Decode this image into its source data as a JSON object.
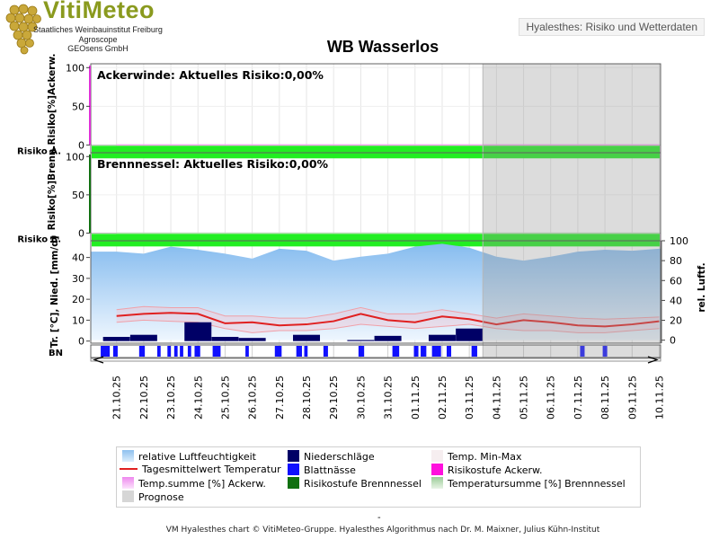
{
  "header": {
    "logo_title": "VitiMeteo",
    "logo_lines": [
      "Staatliches Weinbauinstitut Freiburg",
      "Agroscope",
      "GEOsens GmbH"
    ],
    "subtitle": "Hyalesthes: Risiko und Wetterdaten"
  },
  "chart_data": {
    "type": "line",
    "title": "WB Wasserlos",
    "dates": [
      "21.10.25",
      "22.10.25",
      "23.10.25",
      "24.10.25",
      "25.10.25",
      "26.10.25",
      "27.10.25",
      "28.10.25",
      "29.10.25",
      "30.10.25",
      "31.10.25",
      "01.11.25",
      "02.11.25",
      "03.11.25",
      "04.11.25",
      "05.11.25",
      "06.11.25",
      "07.11.25",
      "08.11.25",
      "09.11.25",
      "10.11.25"
    ],
    "forecast_from": "04.11.25",
    "panels": [
      {
        "name": "Ackerwinde",
        "annotation": "Ackerwinde: Aktuelles Risiko:0,00%",
        "ylabel": "Risiko[%]Ackerw.",
        "row_label": "Risiko A.",
        "ylim": [
          -10,
          105
        ],
        "yticks": [
          0,
          50,
          100
        ],
        "risk_series": "Temp.summe [%] Ackerw.",
        "risk_values": [
          0,
          0,
          0,
          0,
          0,
          0,
          0,
          0,
          0,
          0,
          0,
          0,
          0,
          0,
          0,
          0,
          0,
          0,
          0,
          0,
          0
        ],
        "risk_level_band": "Risikostufe Ackerw.",
        "risk_level_band_color": "#22ee22"
      },
      {
        "name": "Brennnessel",
        "annotation": "Brennnessel: Aktuelles Risiko:0,00%",
        "ylabel": "Risiko[%]Brenn.",
        "row_label": "Risiko B.",
        "ylim": [
          -10,
          105
        ],
        "yticks": [
          0,
          50,
          100
        ],
        "risk_series": "Temperatursumme [%] Brennnessel",
        "risk_values": [
          0,
          0,
          0,
          0,
          0,
          0,
          0,
          0,
          0,
          0,
          0,
          0,
          0,
          0,
          0,
          0,
          0,
          0,
          0,
          0,
          0
        ],
        "risk_level_band": "Risikostufe Brennnessel",
        "risk_level_band_color": "#22ee22"
      }
    ],
    "weather": {
      "ylabel_left": "Tr. [°C], Nied. [mm/d]",
      "ylabel_right": "rel. Luftf.",
      "ylim_left": [
        -1,
        48
      ],
      "yticks_left": [
        0,
        10,
        20,
        30,
        40
      ],
      "ylim_right": [
        -3,
        100
      ],
      "yticks_right": [
        0,
        20,
        40,
        60,
        80,
        100
      ],
      "row_label": "BN",
      "series": [
        {
          "name": "relative Luftfeuchtigkeit",
          "axis": "right",
          "values": [
            89,
            87,
            94,
            91,
            87,
            82,
            92,
            90,
            80,
            84,
            87,
            94,
            97,
            93,
            84,
            80,
            84,
            89,
            91,
            90,
            92
          ]
        },
        {
          "name": "Niederschläge",
          "axis": "left",
          "values": [
            2,
            3,
            0,
            9,
            2,
            1.5,
            0,
            3,
            0,
            0.5,
            2.5,
            0,
            3,
            6,
            0,
            0,
            0,
            0,
            0,
            0,
            0
          ]
        },
        {
          "name": "Tagesmittelwert Temperatur",
          "axis": "left",
          "values": [
            12,
            13,
            13.5,
            13,
            8.5,
            9,
            7.5,
            8,
            9.5,
            13,
            10,
            9,
            11.8,
            10.5,
            8,
            10,
            9,
            7.5,
            7,
            8,
            9.5
          ]
        },
        {
          "name": "Temp. Min-Max",
          "axis": "left",
          "min": [
            9,
            10,
            9.5,
            9,
            6,
            4,
            5,
            5,
            6,
            8,
            7,
            6,
            7,
            8,
            6,
            5,
            5,
            4,
            4,
            5,
            6
          ],
          "max": [
            15,
            16.5,
            16,
            16,
            12,
            12,
            11,
            11,
            13,
            16,
            13,
            13,
            15,
            13,
            11,
            13,
            12,
            11,
            10.5,
            11,
            11.5
          ]
        }
      ],
      "leaf_wetness_hours": [
        [
          "20.10.25 22",
          "21.10.25 06"
        ],
        [
          "21.10.25 09",
          "21.10.25 13"
        ],
        [
          "22.10.25 08",
          "22.10.25 13"
        ],
        [
          "23.10.25 00",
          "23.10.25 03"
        ],
        [
          "23.10.25 09",
          "23.10.25 12"
        ],
        [
          "23.10.25 15",
          "23.10.25 18"
        ],
        [
          "23.10.25 20",
          "23.10.25 23"
        ],
        [
          "24.10.25 03",
          "24.10.25 06"
        ],
        [
          "24.10.25 09",
          "24.10.25 14"
        ],
        [
          "25.10.25 01",
          "25.10.25 08"
        ],
        [
          "26.10.25 06",
          "26.10.25 09"
        ],
        [
          "27.10.25 08",
          "27.10.25 14"
        ],
        [
          "28.10.25 03",
          "28.10.25 08"
        ],
        [
          "28.10.25 10",
          "28.10.25 13"
        ],
        [
          "29.10.25 03",
          "29.10.25 07"
        ],
        [
          "30.10.25 10",
          "30.10.25 15"
        ],
        [
          "31.10.25 16",
          "31.10.25 22"
        ],
        [
          "01.11.25 11",
          "01.11.25 15"
        ],
        [
          "01.11.25 17",
          "01.11.25 22"
        ],
        [
          "02.11.25 03",
          "02.11.25 11"
        ],
        [
          "02.11.25 16",
          "02.11.25 20"
        ],
        [
          "03.11.25 14",
          "03.11.25 19"
        ],
        [
          "07.11.25 14",
          "07.11.25 18"
        ],
        [
          "08.11.25 10",
          "08.11.25 14"
        ]
      ]
    },
    "legend": [
      {
        "label": "relative Luftfeuchtigkeit",
        "color": "#9ecaf0",
        "kind": "area"
      },
      {
        "label": "Niederschläge",
        "color": "#000066",
        "kind": "bar"
      },
      {
        "label": "Temp. Min-Max",
        "color": "#f6e8ea",
        "kind": "band"
      },
      {
        "label": "Tagesmittelwert Temperatur",
        "color": "#e02020",
        "kind": "line"
      },
      {
        "label": "Blattnässe",
        "color": "#1010ff",
        "kind": "bar"
      },
      {
        "label": "Risikostufe Ackerw.",
        "color": "#ff10dd",
        "kind": "band"
      },
      {
        "label": "Temp.summe [%] Ackerw.",
        "color": "#f2a0ee",
        "kind": "area"
      },
      {
        "label": "Risikostufe Brennnessel",
        "color": "#107010",
        "kind": "band"
      },
      {
        "label": "Temperatursumme [%] Brennnessel",
        "color": "#bcdcb8",
        "kind": "area"
      },
      {
        "label": "Prognose",
        "color": "#d6d6d6",
        "kind": "area"
      }
    ]
  },
  "legend_dash": "-",
  "footer": "VM Hyalesthes chart © VitiMeteo-Gruppe. Hyalesthes Algorithmus nach Dr. M. Maixner, Julius Kühn-Institut"
}
